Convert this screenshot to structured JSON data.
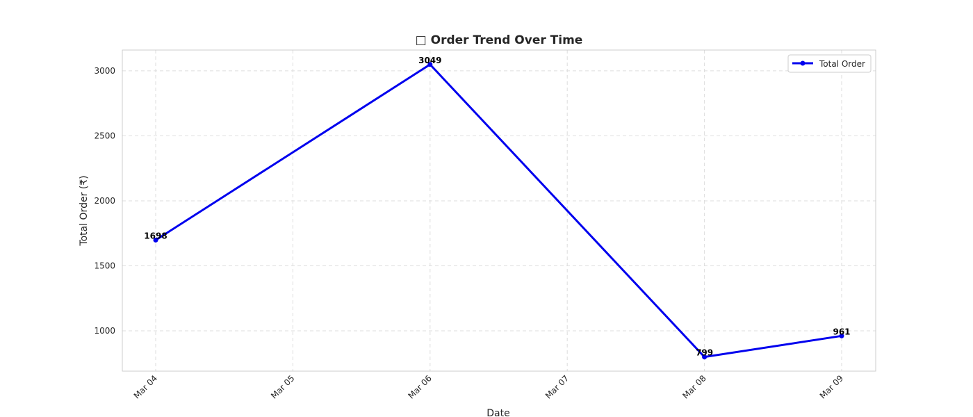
{
  "chart_data": {
    "type": "line",
    "title": "□ Order Trend Over Time",
    "xlabel": "Date",
    "ylabel": "Total Order (₹)",
    "x": [
      "Mar 04",
      "Mar 06",
      "Mar 08",
      "Mar 09"
    ],
    "x_ticks": [
      "Mar 04",
      "Mar 05",
      "Mar 06",
      "Mar 07",
      "Mar 08",
      "Mar 09"
    ],
    "series": [
      {
        "name": "Total Order",
        "values": [
          1698,
          3049,
          799,
          961
        ],
        "data_labels": [
          "1698",
          "3049",
          "799",
          "961"
        ],
        "color": "#0000ee"
      }
    ],
    "xlim": [
      "Mar 04",
      "Mar 09"
    ],
    "ylim": [
      690,
      3160
    ],
    "y_ticks": [
      1000,
      1500,
      2000,
      2500,
      3000
    ],
    "y_tick_labels": [
      "1000",
      "1500",
      "2000",
      "2500",
      "3000"
    ],
    "grid": true,
    "legend_position": "top-right"
  }
}
